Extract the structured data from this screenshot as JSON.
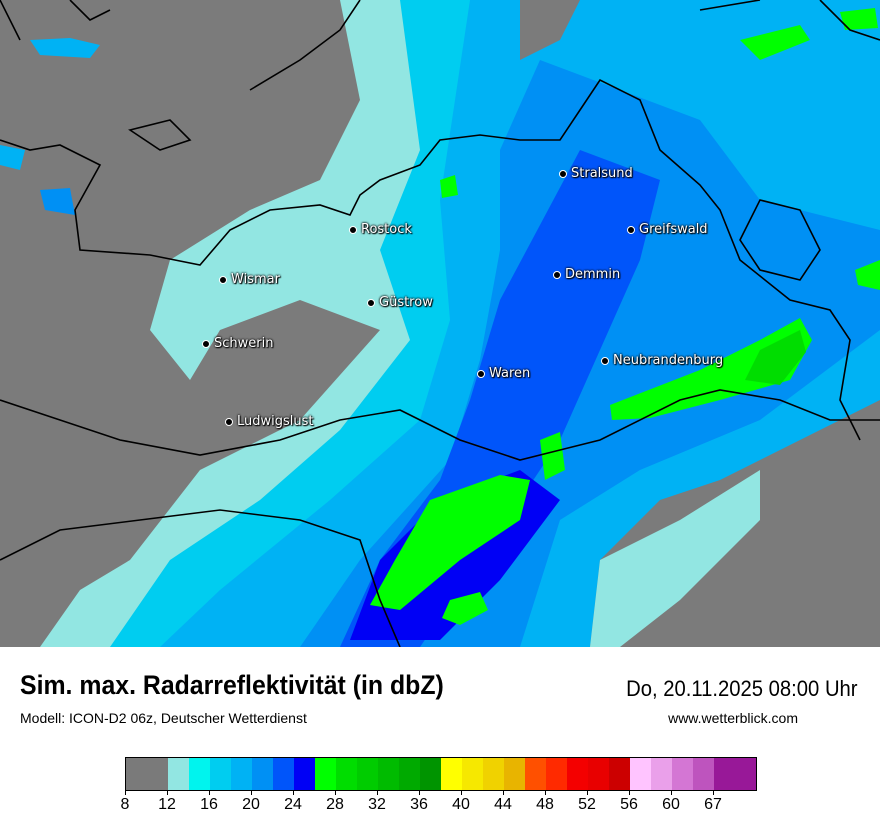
{
  "title": "Sim. max. Radarreflektivität (in dbZ)",
  "datetime": "Do, 20.11.2025 08:00 Uhr",
  "model": "Modell: ICON-D2 06z, Deutscher Wetterdienst",
  "website": "www.wetterblick.com",
  "cities": [
    {
      "name": "Stralsund"
    },
    {
      "name": "Rostock"
    },
    {
      "name": "Greifswald"
    },
    {
      "name": "Wismar"
    },
    {
      "name": "Demmin"
    },
    {
      "name": "Güstrow"
    },
    {
      "name": "Schwerin"
    },
    {
      "name": "Neubrandenburg"
    },
    {
      "name": "Waren"
    },
    {
      "name": "Ludwigslust"
    }
  ],
  "legend": {
    "unit": "dbZ",
    "tick_labels": [
      "8",
      "12",
      "16",
      "20",
      "24",
      "28",
      "32",
      "36",
      "40",
      "44",
      "48",
      "52",
      "56",
      "60",
      "67"
    ],
    "colors": [
      "#7a7a7a",
      "#7a7a7a",
      "#92e6e2",
      "#00f4ee",
      "#00cdf0",
      "#00b2f4",
      "#0090f4",
      "#0055fa",
      "#0000f5",
      "#00ff00",
      "#00dd00",
      "#00cc00",
      "#00bb00",
      "#00aa00",
      "#009400",
      "#ffff00",
      "#f6e800",
      "#f0d200",
      "#e8b400",
      "#ff5000",
      "#ff2a00",
      "#f40000",
      "#e80000",
      "#cc0000",
      "#ffc4ff",
      "#eaa0ea",
      "#d476d4",
      "#be54be",
      "#981898",
      "#981898"
    ]
  },
  "map_colors": {
    "land": "#7b7b7b",
    "c12": "#92e6e2",
    "c14": "#00f4ee",
    "c16": "#00cdf0",
    "c18": "#00b2f4",
    "c20": "#0090f4",
    "c22": "#0055fa",
    "c24": "#0000f5",
    "c26": "#00ff00",
    "c28": "#00dd00"
  }
}
